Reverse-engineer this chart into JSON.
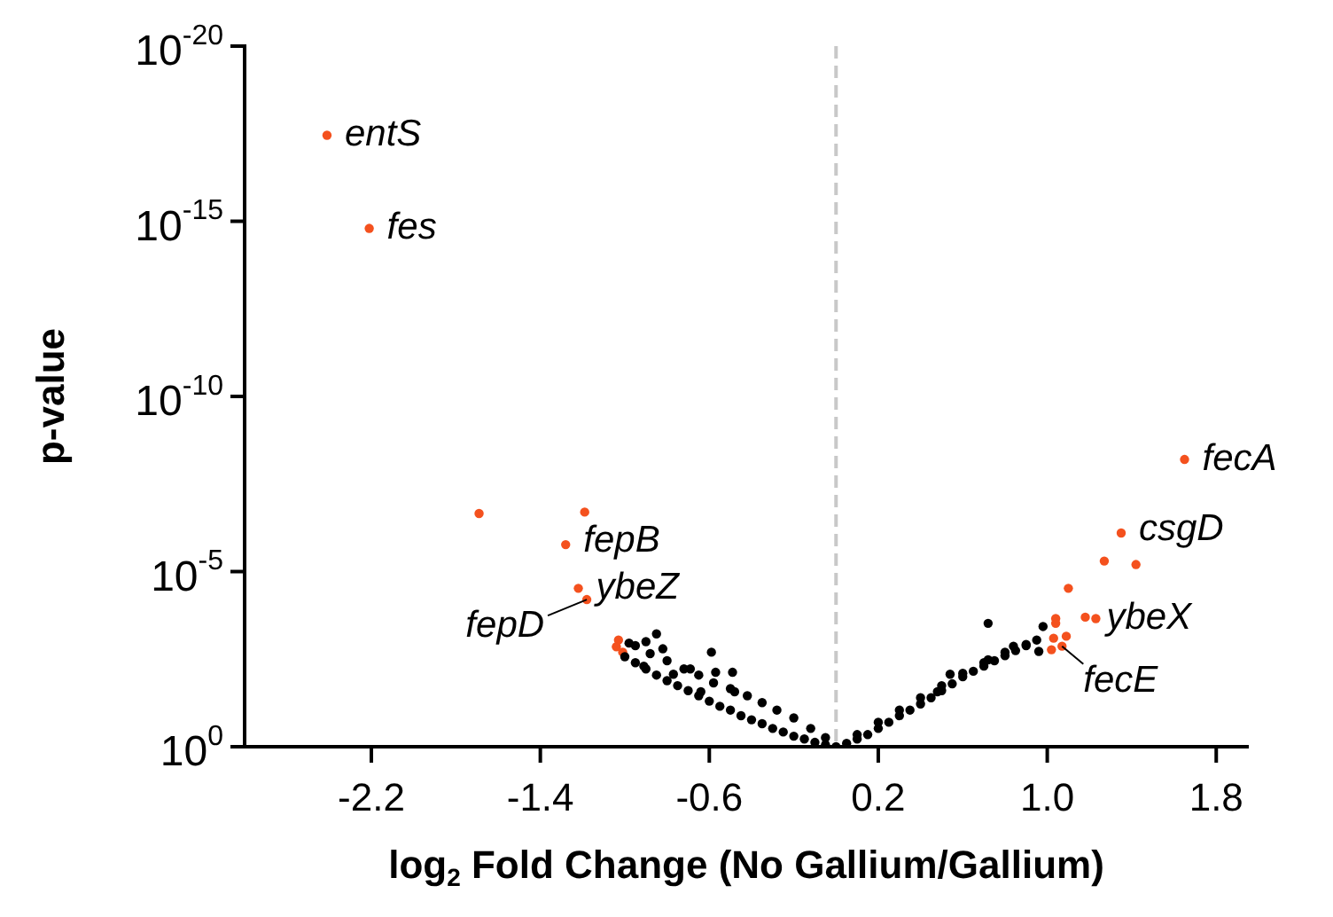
{
  "chart_data": {
    "type": "scatter",
    "xlabel": "log$_{2}$ Fold Change (No Gallium/Gallium)",
    "ylabel": "p-value",
    "log": "y",
    "ylim": [
      1,
      1e-20
    ],
    "yticks": [
      {
        "value": 1e-20,
        "label": "10$^{-20}$"
      },
      {
        "value": 1e-15,
        "label": "10$^{-15}$"
      },
      {
        "value": 1e-10,
        "label": "10$^{-10}$"
      },
      {
        "value": 1e-05,
        "label": "10$^{-5}$"
      },
      {
        "value": 1,
        "label": "10$^{0}$"
      }
    ],
    "xlim": [
      -2.8,
      1.95
    ],
    "xticks": [
      -2.2,
      -1.4,
      -0.6,
      0.2,
      {
        "value": 1,
        "label": "1.0"
      },
      1.8
    ],
    "grid": false,
    "legend": false,
    "marker": "circle",
    "ref_lines": [
      {
        "axis": "x",
        "value": 0,
        "color": "#c8c8c8",
        "line_style": "dashed"
      }
    ],
    "series": [
      {
        "color": "#000000",
        "x": [
          -0.98,
          -0.9,
          -0.85,
          -0.82,
          -0.91,
          -0.59,
          -0.57,
          -0.49,
          -0.48,
          -0.77,
          -0.69,
          -0.64,
          -1.0,
          -0.95,
          -0.9,
          -0.85,
          -0.8,
          -0.75,
          -0.7,
          -0.65,
          -0.6,
          -0.55,
          -0.5,
          -0.45,
          -0.4,
          -0.35,
          -0.3,
          -0.25,
          -0.2,
          -0.15,
          -0.1,
          -0.05,
          -0.95,
          -0.88,
          -0.8,
          -0.72,
          -0.65,
          -0.58,
          -0.5,
          -0.42,
          -0.35,
          -0.28,
          -0.2,
          -0.12,
          -0.05,
          0,
          0.05,
          0.1,
          0.15,
          0.2,
          0.25,
          0.3,
          0.35,
          0.4,
          0.45,
          0.5,
          0.55,
          0.6,
          0.65,
          0.7,
          0.75,
          0.8,
          0.85,
          0.9,
          0.95,
          0.1,
          0.2,
          0.3,
          0.4,
          0.5,
          0.6,
          0.7,
          0.8,
          0.9,
          0.72,
          0.98,
          0.84,
          0.72,
          0.96,
          0.54,
          0.48
        ],
        "values": [
          0.0011,
          0.001,
          0.0006,
          0.0016,
          0.005,
          0.002,
          0.0075,
          0.0075,
          0.027,
          0.0085,
          0.006,
          0.027,
          0.0027,
          0.004,
          0.006,
          0.009,
          0.013,
          0.018,
          0.025,
          0.035,
          0.05,
          0.07,
          0.09,
          0.13,
          0.17,
          0.22,
          0.3,
          0.38,
          0.5,
          0.6,
          0.75,
          0.88,
          0.0013,
          0.0022,
          0.0035,
          0.006,
          0.009,
          0.015,
          0.022,
          0.035,
          0.055,
          0.09,
          0.15,
          0.3,
          0.55,
          1,
          0.8,
          0.6,
          0.45,
          0.3,
          0.2,
          0.13,
          0.09,
          0.06,
          0.04,
          0.025,
          0.016,
          0.01,
          0.007,
          0.005,
          0.0035,
          0.0025,
          0.0018,
          0.0013,
          0.0009,
          0.45,
          0.2,
          0.09,
          0.04,
          0.018,
          0.008,
          0.004,
          0.002,
          0.0012,
          0.0003,
          0.00037,
          0.00135,
          0.0033,
          0.0019,
          0.0085,
          0.027
        ]
      },
      {
        "color": "#f4511e",
        "x": [
          -2.41,
          -2.21,
          -1.69,
          -1.19,
          -1.28,
          -1.22,
          -1.18,
          -1.03,
          -1.04,
          -1.01,
          1.65,
          1.35,
          1.27,
          1.42,
          1.1,
          1.04,
          1.04,
          1.18,
          1.23,
          1.03,
          1.09,
          1.07,
          1.02
        ],
        "values": [
          3.5e-18,
          1.6e-15,
          2.2e-07,
          2e-07,
          1.7e-06,
          3e-05,
          6.3e-05,
          0.0009,
          0.0014,
          0.002,
          6.3e-09,
          7.9e-07,
          5e-06,
          6.3e-06,
          3e-05,
          0.00022,
          0.0003,
          0.0002,
          0.00022,
          0.0008,
          0.0007,
          0.00135,
          0.0017
        ]
      }
    ],
    "annotations": [
      {
        "text": "entS",
        "x": -2.41,
        "y": 3.5e-18
      },
      {
        "text": "fes",
        "x": -2.21,
        "y": 1.6e-15
      },
      {
        "text": "fepB",
        "x": -1.28,
        "y": 1.7e-06
      },
      {
        "text": "ybeZ",
        "x": -1.22,
        "y": 3e-05
      },
      {
        "text": "fepD",
        "x": -1.18,
        "y": 6.3e-05
      },
      {
        "text": "fecA",
        "x": 1.65,
        "y": 6.3e-09
      },
      {
        "text": "csgD",
        "x": 1.35,
        "y": 7.9e-07
      },
      {
        "text": "ybeX",
        "x": 1.23,
        "y": 0.00022
      },
      {
        "text": "fecE",
        "x": 1.07,
        "y": 0.00135
      }
    ]
  }
}
